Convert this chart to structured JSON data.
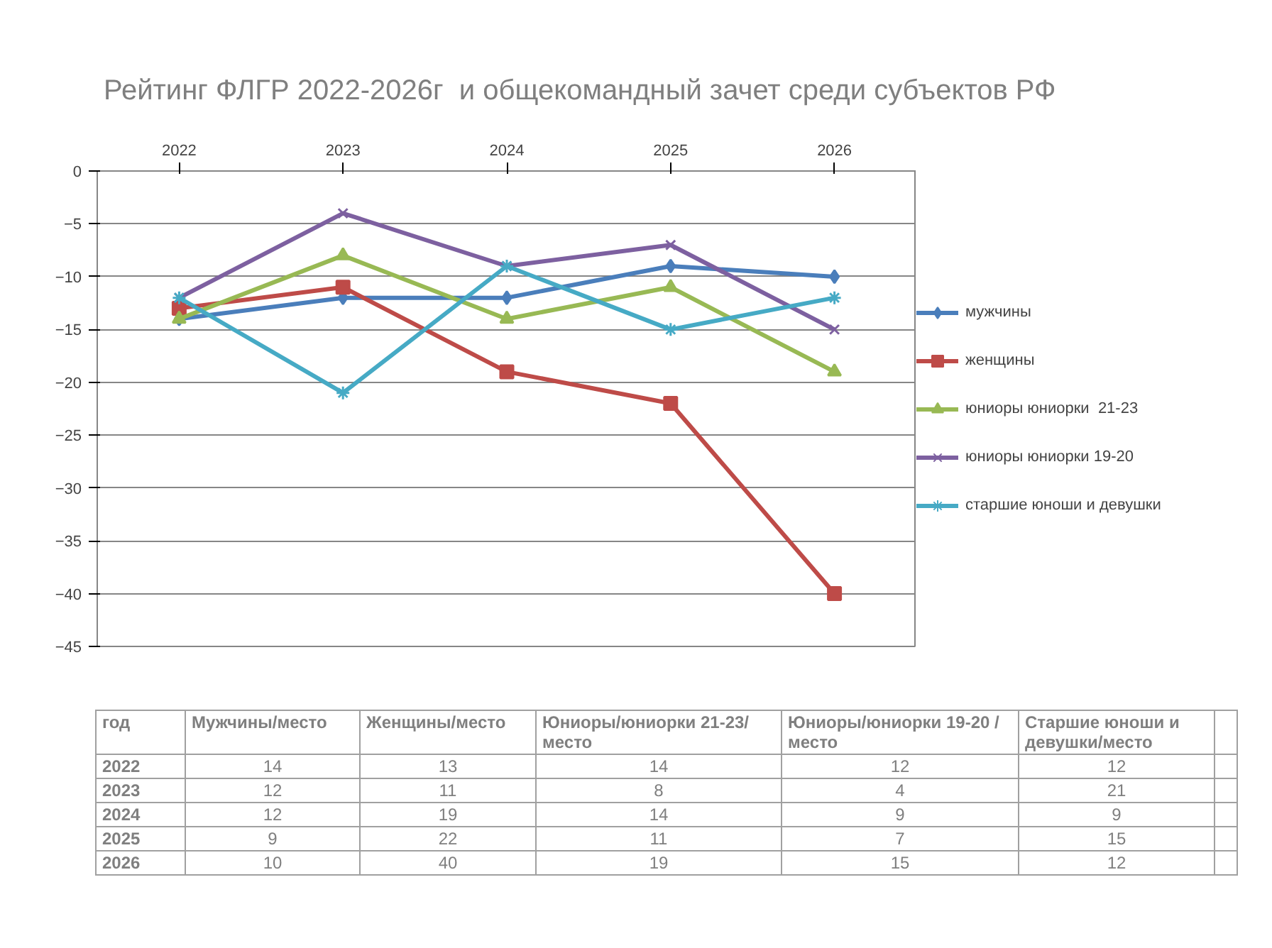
{
  "chart_data": [
    {
      "type": "line",
      "title": "Рейтинг ФЛГР 2022-2026г  и общекомандный зачет среди субъектов РФ",
      "categories": [
        "2022",
        "2023",
        "2024",
        "2025",
        "2026"
      ],
      "series": [
        {
          "name": "мужчины",
          "color": "#4a7ebb",
          "marker": "diamond",
          "values": [
            -14,
            -12,
            -12,
            -9,
            -10
          ]
        },
        {
          "name": "женщины",
          "color": "#be4b48",
          "marker": "square",
          "values": [
            -13,
            -11,
            -19,
            -22,
            -40
          ]
        },
        {
          "name": "юниоры юниорки  21-23",
          "color": "#98b954",
          "marker": "triangle",
          "values": [
            -14,
            -8,
            -14,
            -11,
            -19
          ]
        },
        {
          "name": "юниоры юниорки 19-20",
          "color": "#7d60a0",
          "marker": "x",
          "values": [
            -12,
            -4,
            -9,
            -7,
            -15
          ]
        },
        {
          "name": "старшие юноши и девушки",
          "color": "#46aac5",
          "marker": "cross",
          "values": [
            -12,
            -21,
            -9,
            -15,
            -12
          ]
        }
      ],
      "ylim": [
        -45,
        0
      ],
      "yticks": [
        0,
        -5,
        -10,
        -15,
        -20,
        -25,
        -30,
        -35,
        -40,
        -45
      ],
      "grid": "y",
      "legend": "right",
      "line_style": "solid"
    },
    {
      "type": "heatmap",
      "ylabel": "год",
      "categories": [
        "Мужчины/место",
        "Женщины/место",
        "Юниоры/юниорки 21-23/место",
        "Юниоры/юниорки 19-20 /место",
        "Старшие юноши и девушки/место"
      ],
      "y_categories": [
        "2022",
        "2023",
        "2024",
        "2025",
        "2026"
      ],
      "cells": [
        [
          14,
          13,
          14,
          12,
          12
        ],
        [
          12,
          11,
          8,
          4,
          21
        ],
        [
          12,
          19,
          14,
          9,
          9
        ],
        [
          9,
          22,
          11,
          7,
          15
        ],
        [
          10,
          40,
          19,
          15,
          12
        ]
      ],
      "data_labels": true
    }
  ]
}
